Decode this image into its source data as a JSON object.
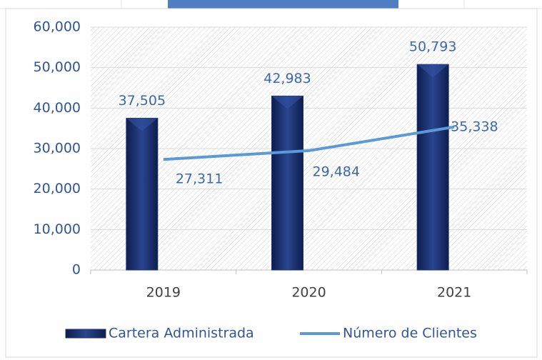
{
  "chart_data": {
    "type": "combo",
    "categories": [
      "2019",
      "2020",
      "2021"
    ],
    "series": [
      {
        "name": "Cartera Administrada",
        "type": "bar",
        "color": "#1f3473",
        "values": [
          37505,
          42983,
          50793
        ],
        "value_labels": [
          "37,505",
          "42,983",
          "50,793"
        ]
      },
      {
        "name": "Número de Clientes",
        "type": "line",
        "color": "#5b9bd5",
        "values": [
          27311,
          29484,
          35338
        ],
        "value_labels": [
          "27,311",
          "29,484",
          "35,338"
        ]
      }
    ],
    "ylim": [
      0,
      60000
    ],
    "yticks": [
      {
        "value": 0,
        "label": "0"
      },
      {
        "value": 10000,
        "label": "10,000"
      },
      {
        "value": 20000,
        "label": "20,000"
      },
      {
        "value": 30000,
        "label": "30,000"
      },
      {
        "value": 40000,
        "label": "40,000"
      },
      {
        "value": 50000,
        "label": "50,000"
      },
      {
        "value": 60000,
        "label": "60,000"
      }
    ],
    "grid": true,
    "legend": "bottom"
  }
}
